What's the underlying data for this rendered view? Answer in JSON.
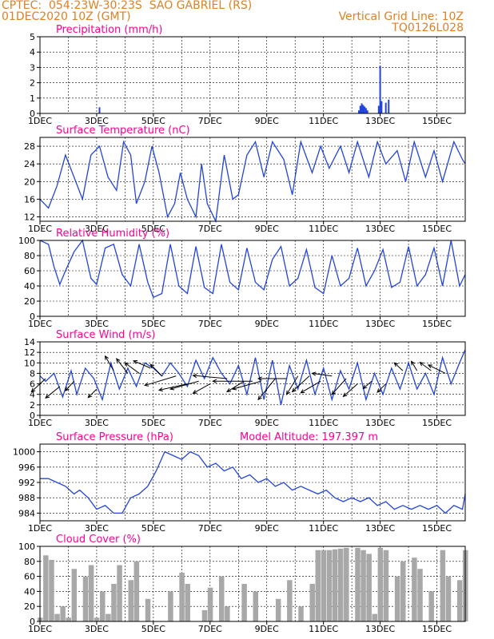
{
  "header": {
    "line1": "CPTEC:  054:23W-30:23S  SAO GABRIEL (RS)",
    "line2": "01DEC2020 10Z (GMT)",
    "right1": "Vertical Grid Line: 10Z",
    "right2": "TQ0126L028"
  },
  "colors": {
    "header": "#e08020",
    "title": "#ff0090",
    "line": "#2244dd",
    "bar": "#2244dd",
    "cloud": "#a8a8a8",
    "grid": "#000000"
  },
  "chart_data": [
    {
      "type": "bar",
      "title": "Precipitation (mm/h)",
      "xlabel": "",
      "ylabel": "",
      "ylim": [
        0,
        5
      ],
      "yticks": [
        0,
        1,
        2,
        3,
        4,
        5
      ],
      "xticks": [
        "1DEC",
        "3DEC",
        "5DEC",
        "7DEC",
        "9DEC",
        "11DEC",
        "13DEC",
        "15DEC"
      ],
      "x": [
        3.1,
        12.25,
        12.3,
        12.35,
        12.4,
        12.45,
        12.5,
        12.55,
        12.95,
        13.0,
        13.05,
        13.2,
        13.3
      ],
      "values": [
        0.4,
        0.2,
        0.5,
        0.65,
        0.55,
        0.45,
        0.35,
        0.2,
        0.5,
        3.1,
        0.8,
        0.7,
        0.9
      ]
    },
    {
      "type": "line",
      "title": "Surface Temperature (nC)",
      "ylim": [
        11,
        30
      ],
      "yticks": [
        12,
        16,
        20,
        24,
        28
      ],
      "xticks": [
        "1DEC",
        "3DEC",
        "5DEC",
        "7DEC",
        "9DEC",
        "11DEC",
        "13DEC",
        "15DEC"
      ],
      "x": [
        1.0,
        1.3,
        1.6,
        1.9,
        2.2,
        2.5,
        2.8,
        3.1,
        3.4,
        3.7,
        3.95,
        4.2,
        4.4,
        4.7,
        4.95,
        5.2,
        5.5,
        5.75,
        5.95,
        6.2,
        6.5,
        6.7,
        6.9,
        7.2,
        7.5,
        7.8,
        8.0,
        8.3,
        8.6,
        8.9,
        9.2,
        9.6,
        9.9,
        10.2,
        10.6,
        10.9,
        11.2,
        11.6,
        11.9,
        12.2,
        12.6,
        12.9,
        13.2,
        13.6,
        13.9,
        14.2,
        14.6,
        14.9,
        15.2,
        15.6,
        15.9,
        16.0
      ],
      "values": [
        16,
        14,
        19,
        26,
        21,
        16,
        26,
        28,
        21,
        18,
        29,
        26,
        15,
        20,
        28,
        22,
        12,
        15,
        22,
        16,
        12,
        24,
        15,
        11,
        26,
        16,
        17,
        26,
        29,
        21,
        29,
        25,
        17,
        29,
        22,
        28,
        23,
        28,
        22,
        29,
        21,
        29,
        24,
        27,
        20,
        29,
        21,
        27,
        20,
        29,
        25,
        24
      ]
    },
    {
      "type": "line",
      "title": "Relative Humidity (%)",
      "ylim": [
        0,
        100
      ],
      "yticks": [
        0,
        20,
        40,
        60,
        80,
        100
      ],
      "xticks": [
        "1DEC",
        "3DEC",
        "5DEC",
        "7DEC",
        "9DEC",
        "11DEC",
        "13DEC",
        "15DEC"
      ],
      "x": [
        1.0,
        1.3,
        1.5,
        1.7,
        1.9,
        2.2,
        2.5,
        2.8,
        3.0,
        3.3,
        3.6,
        3.9,
        4.2,
        4.5,
        4.8,
        5.0,
        5.3,
        5.6,
        5.9,
        6.2,
        6.5,
        6.8,
        7.1,
        7.4,
        7.7,
        8.0,
        8.3,
        8.6,
        8.9,
        9.2,
        9.5,
        9.8,
        10.1,
        10.4,
        10.7,
        11.0,
        11.3,
        11.6,
        11.9,
        12.2,
        12.5,
        12.8,
        13.1,
        13.4,
        13.7,
        14.0,
        14.3,
        14.6,
        14.9,
        15.2,
        15.5,
        15.8,
        16.0
      ],
      "values": [
        100,
        95,
        65,
        42,
        60,
        85,
        100,
        50,
        42,
        90,
        95,
        55,
        40,
        95,
        45,
        25,
        30,
        95,
        40,
        30,
        92,
        38,
        30,
        95,
        45,
        35,
        90,
        45,
        35,
        75,
        92,
        40,
        50,
        88,
        38,
        30,
        80,
        40,
        50,
        90,
        40,
        60,
        88,
        38,
        45,
        92,
        40,
        55,
        90,
        40,
        100,
        40,
        55
      ]
    },
    {
      "type": "line",
      "title": "Surface Wind (m/s)",
      "ylim": [
        0,
        14
      ],
      "yticks": [
        0,
        2,
        4,
        6,
        8,
        10,
        12,
        14
      ],
      "xticks": [
        "1DEC",
        "3DEC",
        "5DEC",
        "7DEC",
        "9DEC",
        "11DEC",
        "13DEC",
        "15DEC"
      ],
      "x": [
        1.0,
        1.2,
        1.5,
        1.8,
        2.1,
        2.3,
        2.6,
        2.9,
        3.2,
        3.5,
        3.8,
        4.1,
        4.4,
        4.7,
        5.0,
        5.3,
        5.6,
        5.9,
        6.2,
        6.5,
        6.8,
        7.1,
        7.4,
        7.7,
        8.0,
        8.3,
        8.6,
        8.9,
        9.2,
        9.5,
        9.8,
        10.1,
        10.4,
        10.7,
        11.0,
        11.3,
        11.6,
        11.9,
        12.2,
        12.5,
        12.8,
        13.1,
        13.4,
        13.7,
        14.0,
        14.3,
        14.6,
        14.9,
        15.2,
        15.5,
        15.8,
        16.0
      ],
      "values": [
        7.5,
        6.5,
        8,
        3.5,
        8.5,
        4,
        9,
        7,
        3,
        10,
        5,
        9,
        5.5,
        10,
        9,
        7.5,
        10,
        8,
        5.5,
        10.5,
        7,
        11,
        8,
        6,
        9.5,
        4,
        11,
        3,
        10.5,
        2,
        9.5,
        5,
        10.5,
        4,
        9,
        3,
        8.5,
        5,
        10,
        3,
        8,
        4,
        9,
        5,
        10,
        5,
        8,
        4,
        11,
        6,
        10,
        12.5
      ],
      "vectors": [
        {
          "x": 1.2,
          "y": 7.0,
          "dx": -0.5,
          "dy": -2.5
        },
        {
          "x": 1.7,
          "y": 5.5,
          "dx": -0.5,
          "dy": -2.2
        },
        {
          "x": 2.2,
          "y": 6.5,
          "dx": -0.3,
          "dy": -1.8
        },
        {
          "x": 3.0,
          "y": 5.0,
          "dx": -0.3,
          "dy": -1.6
        },
        {
          "x": 3.6,
          "y": 8.5,
          "dx": -0.3,
          "dy": 2.8
        },
        {
          "x": 4.1,
          "y": 8.0,
          "dx": -0.4,
          "dy": 2.8
        },
        {
          "x": 4.5,
          "y": 8.0,
          "dx": -0.5,
          "dy": 2.0
        },
        {
          "x": 4.9,
          "y": 9.0,
          "dx": -0.6,
          "dy": 1.4
        },
        {
          "x": 5.3,
          "y": 7.5,
          "dx": -0.4,
          "dy": 2.2
        },
        {
          "x": 5.8,
          "y": 7.5,
          "dx": -1.1,
          "dy": -1.8
        },
        {
          "x": 6.2,
          "y": 6.0,
          "dx": -1.0,
          "dy": -1.2
        },
        {
          "x": 6.6,
          "y": 6.5,
          "dx": -1.0,
          "dy": -1.5
        },
        {
          "x": 7.0,
          "y": 6.0,
          "dx": -0.6,
          "dy": -1.8
        },
        {
          "x": 7.6,
          "y": 7.0,
          "dx": -1.2,
          "dy": 0.6
        },
        {
          "x": 8.2,
          "y": 6.5,
          "dx": -0.6,
          "dy": -2.0
        },
        {
          "x": 8.5,
          "y": 6.5,
          "dx": -1.4,
          "dy": 0.0
        },
        {
          "x": 8.8,
          "y": 6.5,
          "dx": -1.0,
          "dy": -1.5
        },
        {
          "x": 9.3,
          "y": 7.0,
          "dx": -0.6,
          "dy": -4.0
        },
        {
          "x": 9.7,
          "y": 7.0,
          "dx": -1.0,
          "dy": 0.0
        },
        {
          "x": 10.1,
          "y": 7.5,
          "dx": -0.4,
          "dy": -3.5
        },
        {
          "x": 10.5,
          "y": 7.5,
          "dx": -0.6,
          "dy": -3.0
        },
        {
          "x": 10.9,
          "y": 6.5,
          "dx": -0.7,
          "dy": -2.2
        },
        {
          "x": 11.3,
          "y": 7.5,
          "dx": -0.7,
          "dy": 0.5
        },
        {
          "x": 11.8,
          "y": 7.0,
          "dx": -0.5,
          "dy": -3.0
        },
        {
          "x": 12.2,
          "y": 6.0,
          "dx": -0.5,
          "dy": -2.4
        },
        {
          "x": 12.7,
          "y": 6.5,
          "dx": -0.3,
          "dy": -1.4
        },
        {
          "x": 13.2,
          "y": 6.0,
          "dx": -0.3,
          "dy": -1.6
        },
        {
          "x": 13.8,
          "y": 8.5,
          "dx": -0.3,
          "dy": 1.5
        },
        {
          "x": 14.3,
          "y": 8.5,
          "dx": -0.2,
          "dy": 1.8
        },
        {
          "x": 14.8,
          "y": 8.5,
          "dx": -0.4,
          "dy": 1.6
        },
        {
          "x": 15.3,
          "y": 8.0,
          "dx": -0.6,
          "dy": 1.6
        }
      ]
    },
    {
      "type": "line",
      "title": "Surface Pressure (hPa)",
      "annotation": "Model Altitude: 197.397 m",
      "ylim": [
        982,
        1002
      ],
      "yticks": [
        984,
        988,
        992,
        996,
        1000
      ],
      "xticks": [
        "1DEC",
        "3DEC",
        "5DEC",
        "7DEC",
        "9DEC",
        "11DEC",
        "13DEC",
        "15DEC"
      ],
      "x": [
        1.0,
        1.3,
        1.6,
        1.9,
        2.2,
        2.4,
        2.7,
        3.0,
        3.3,
        3.6,
        3.9,
        4.2,
        4.5,
        4.8,
        5.1,
        5.4,
        5.7,
        6.0,
        6.3,
        6.6,
        6.9,
        7.2,
        7.5,
        7.8,
        8.1,
        8.4,
        8.7,
        9.0,
        9.3,
        9.6,
        9.9,
        10.2,
        10.5,
        10.8,
        11.1,
        11.4,
        11.7,
        12.0,
        12.3,
        12.6,
        12.9,
        13.2,
        13.5,
        13.8,
        14.1,
        14.4,
        14.7,
        15.0,
        15.3,
        15.6,
        15.9,
        16.0
      ],
      "values": [
        993,
        993,
        992,
        991,
        989,
        990,
        988,
        985,
        986,
        984,
        984,
        988,
        989,
        991,
        995,
        1000,
        999,
        998,
        1000,
        999,
        996,
        997,
        995,
        996,
        993,
        994,
        992,
        993,
        991,
        992,
        990,
        991,
        990,
        989,
        990,
        988,
        987,
        988,
        987,
        988,
        986,
        987,
        985,
        986,
        985,
        986,
        985,
        986,
        984,
        986,
        985,
        989
      ]
    },
    {
      "type": "area",
      "title": "Cloud Cover (%)",
      "ylim": [
        0,
        100
      ],
      "yticks": [
        0,
        20,
        40,
        60,
        80,
        100
      ],
      "xticks": [
        "1DEC",
        "3DEC",
        "5DEC",
        "7DEC",
        "9DEC",
        "11DEC",
        "13DEC",
        "15DEC"
      ],
      "x": [
        1.0,
        1.2,
        1.4,
        1.6,
        1.8,
        2.0,
        2.2,
        2.4,
        2.6,
        2.8,
        3.0,
        3.2,
        3.4,
        3.6,
        3.8,
        4.0,
        4.2,
        4.4,
        4.6,
        4.8,
        5.0,
        5.2,
        5.4,
        5.6,
        5.8,
        6.0,
        6.2,
        6.4,
        6.6,
        6.8,
        7.0,
        7.2,
        7.4,
        7.6,
        7.8,
        8.0,
        8.2,
        8.4,
        8.6,
        8.8,
        9.0,
        9.2,
        9.4,
        9.6,
        9.8,
        10.0,
        10.2,
        10.4,
        10.6,
        10.8,
        11.0,
        11.2,
        11.4,
        11.6,
        11.8,
        12.0,
        12.2,
        12.4,
        12.6,
        12.8,
        13.0,
        13.2,
        13.4,
        13.6,
        13.8,
        14.0,
        14.2,
        14.4,
        14.6,
        14.8,
        15.0,
        15.2,
        15.4,
        15.6,
        15.8,
        16.0
      ],
      "values": [
        5,
        88,
        82,
        10,
        20,
        5,
        70,
        0,
        60,
        75,
        5,
        40,
        10,
        50,
        75,
        0,
        55,
        80,
        0,
        30,
        0,
        0,
        0,
        40,
        0,
        65,
        50,
        0,
        0,
        15,
        45,
        0,
        60,
        20,
        0,
        0,
        50,
        0,
        40,
        0,
        0,
        0,
        30,
        0,
        55,
        0,
        20,
        0,
        50,
        95,
        95,
        95,
        96,
        97,
        98,
        0,
        98,
        95,
        90,
        10,
        98,
        95,
        0,
        60,
        80,
        0,
        85,
        70,
        0,
        40,
        0,
        95,
        60,
        0,
        55,
        95
      ]
    }
  ]
}
